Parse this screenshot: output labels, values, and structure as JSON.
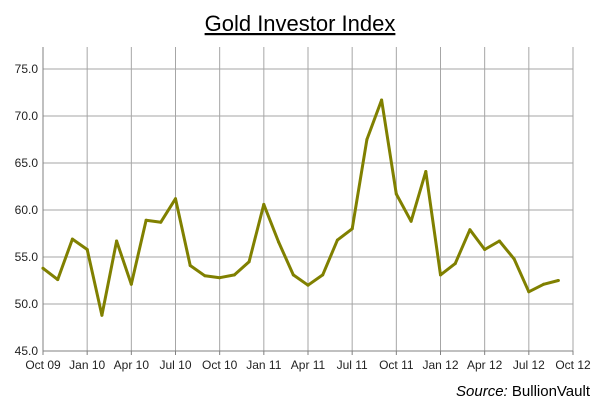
{
  "chart_data": {
    "type": "line",
    "title": "Gold Investor Index",
    "xlabel": "",
    "ylabel": "",
    "ylim": [
      45.0,
      77.0
    ],
    "yticks": [
      "45.0",
      "50.0",
      "55.0",
      "60.0",
      "65.0",
      "70.0",
      "75.0"
    ],
    "xticks": [
      "Oct 09",
      "Jan 10",
      "Apr 10",
      "Jul 10",
      "Oct 10",
      "Jan 11",
      "Apr 11",
      "Jul 11",
      "Oct 11",
      "Jan 12",
      "Apr 12",
      "Jul 12",
      "Oct 12"
    ],
    "grid": true,
    "series": [
      {
        "color": "#808000",
        "x": [
          "Oct 09",
          "Nov 09",
          "Dec 09",
          "Jan 10",
          "Feb 10",
          "Mar 10",
          "Apr 10",
          "May 10",
          "Jun 10",
          "Jul 10",
          "Aug 10",
          "Sep 10",
          "Oct 10",
          "Nov 10",
          "Dec 10",
          "Jan 11",
          "Feb 11",
          "Mar 11",
          "Apr 11",
          "May 11",
          "Jun 11",
          "Jul 11",
          "Aug 11",
          "Sep 11",
          "Oct 11",
          "Nov 11",
          "Dec 11",
          "Jan 12",
          "Feb 12",
          "Mar 12",
          "Apr 12",
          "May 12",
          "Jun 12",
          "Jul 12",
          "Aug 12",
          "Sep 12"
        ],
        "values": [
          53.8,
          52.6,
          56.9,
          55.8,
          48.8,
          56.7,
          52.1,
          58.9,
          58.7,
          61.2,
          54.1,
          53.0,
          52.8,
          53.1,
          54.5,
          60.6,
          56.6,
          53.1,
          52.0,
          53.1,
          56.8,
          58.0,
          67.5,
          71.7,
          61.7,
          58.8,
          64.1,
          53.1,
          54.3,
          57.9,
          55.8,
          56.7,
          54.8,
          51.3,
          52.1,
          52.5
        ]
      }
    ]
  },
  "footer": {
    "source_label": "Source:",
    "source_name": " BullionVault"
  }
}
